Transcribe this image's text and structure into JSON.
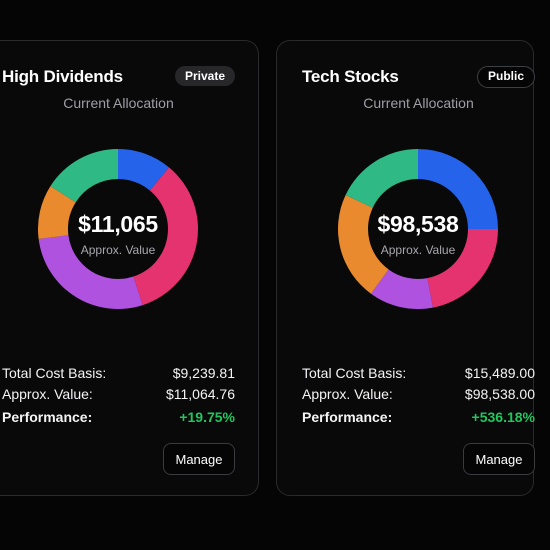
{
  "portfolios": [
    {
      "name": "High Dividends",
      "visibility": "Private",
      "subtitle": "Current Allocation",
      "center_value": "$11,065",
      "center_label": "Approx. Value",
      "stats": {
        "cost_basis_label": "Total Cost Basis:",
        "cost_basis_value": "$9,239.81",
        "approx_label": "Approx. Value:",
        "approx_value": "$11,064.76",
        "performance_label": "Performance:",
        "performance_value": "+19.75%"
      },
      "manage_label": "Manage"
    },
    {
      "name": "Tech Stocks",
      "visibility": "Public",
      "subtitle": "Current Allocation",
      "center_value": "$98,538",
      "center_label": "Approx. Value",
      "stats": {
        "cost_basis_label": "Total Cost Basis:",
        "cost_basis_value": "$15,489.00",
        "approx_label": "Approx. Value:",
        "approx_value": "$98,538.00",
        "performance_label": "Performance:",
        "performance_value": "+536.18%"
      },
      "manage_label": "Manage"
    }
  ],
  "chart_data": [
    {
      "type": "pie",
      "categories": [
        "blue",
        "pink",
        "purple",
        "orange",
        "green"
      ],
      "values": [
        11,
        34,
        28,
        11,
        16
      ],
      "colors": [
        "#2563eb",
        "#e5336f",
        "#b052e0",
        "#ea8a2e",
        "#2fb985"
      ],
      "start_angle": 90
    },
    {
      "type": "pie",
      "categories": [
        "blue",
        "pink",
        "purple",
        "orange",
        "green"
      ],
      "values": [
        25,
        22,
        13,
        22,
        18
      ],
      "colors": [
        "#2563eb",
        "#e5336f",
        "#b052e0",
        "#ea8a2e",
        "#2fb985"
      ],
      "start_angle": 90
    }
  ],
  "colors": {
    "positive": "#22c55e",
    "card_border": "#2a2a2d"
  }
}
